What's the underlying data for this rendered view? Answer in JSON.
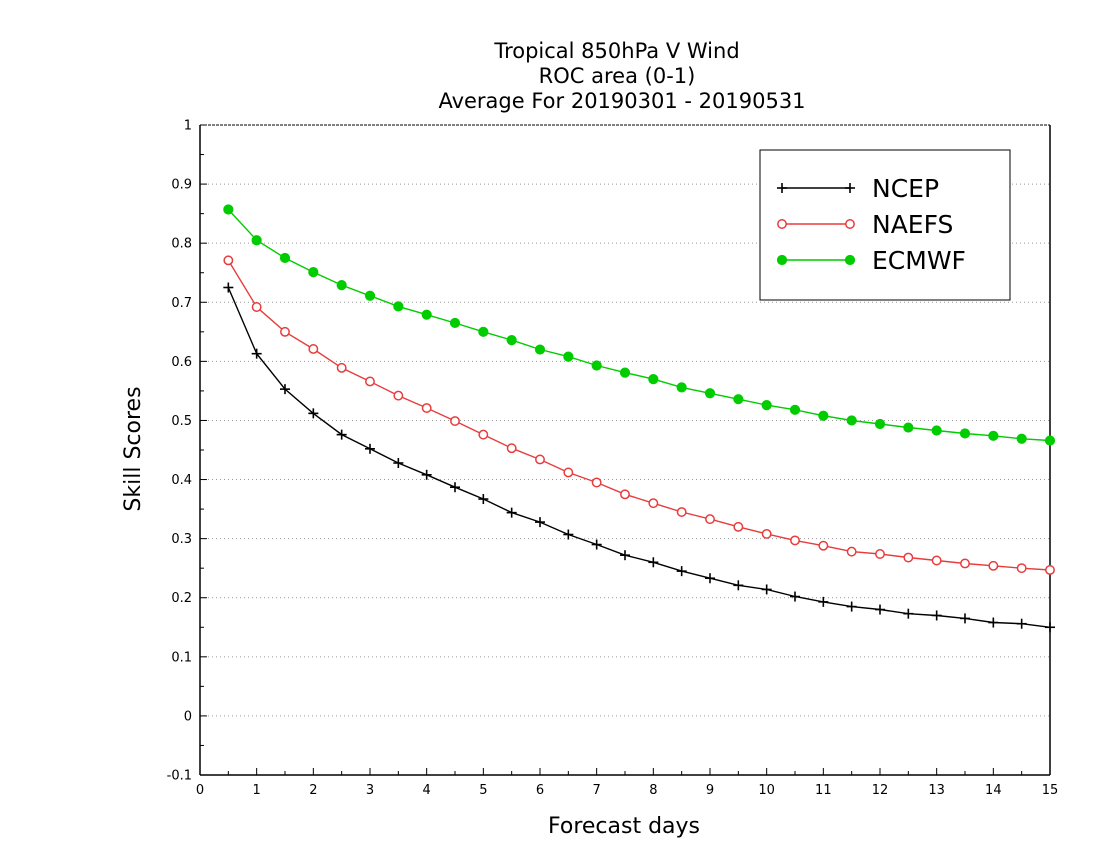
{
  "chart_data": {
    "type": "line",
    "title_lines": [
      "Tropical 850hPa V Wind",
      "ROC area (0-1)",
      "Average For 20190301 - 20190531"
    ],
    "xlabel": "Forecast days",
    "ylabel": "Skill Scores",
    "xlim": [
      0,
      15
    ],
    "ylim": [
      -0.1,
      1
    ],
    "xticks": [
      0,
      1,
      2,
      3,
      4,
      5,
      6,
      7,
      8,
      9,
      10,
      11,
      12,
      13,
      14,
      15
    ],
    "yticks": [
      -0.1,
      0,
      0.1,
      0.2,
      0.3,
      0.4,
      0.5,
      0.6,
      0.7,
      0.8,
      0.9,
      1
    ],
    "ytick_labels": [
      "-0.1",
      "0",
      "0.1",
      "0.2",
      "0.3",
      "0.4",
      "0.5",
      "0.6",
      "0.7",
      "0.8",
      "0.9",
      "1"
    ],
    "grid": "horizontal-dotted",
    "legend_position": "top-right",
    "x": [
      0.5,
      1,
      1.5,
      2,
      2.5,
      3,
      3.5,
      4,
      4.5,
      5,
      5.5,
      6,
      6.5,
      7,
      7.5,
      8,
      8.5,
      9,
      9.5,
      10,
      10.5,
      11,
      11.5,
      12,
      12.5,
      13,
      13.5,
      14,
      14.5,
      15
    ],
    "series": [
      {
        "name": "NCEP",
        "color": "#000000",
        "marker": "plus",
        "values": [
          0.725,
          0.613,
          0.553,
          0.512,
          0.476,
          0.452,
          0.428,
          0.408,
          0.387,
          0.367,
          0.344,
          0.328,
          0.307,
          0.29,
          0.272,
          0.26,
          0.245,
          0.233,
          0.221,
          0.214,
          0.202,
          0.193,
          0.185,
          0.18,
          0.173,
          0.17,
          0.165,
          0.158,
          0.156,
          0.15
        ]
      },
      {
        "name": "NAEFS",
        "color": "#e83c3c",
        "marker": "open-circle",
        "values": [
          0.771,
          0.692,
          0.65,
          0.621,
          0.589,
          0.566,
          0.542,
          0.521,
          0.499,
          0.476,
          0.453,
          0.434,
          0.412,
          0.395,
          0.375,
          0.36,
          0.345,
          0.333,
          0.32,
          0.308,
          0.297,
          0.288,
          0.278,
          0.274,
          0.268,
          0.263,
          0.258,
          0.254,
          0.25,
          0.247
        ]
      },
      {
        "name": "ECMWF",
        "color": "#00cc00",
        "marker": "filled-circle",
        "values": [
          0.857,
          0.805,
          0.775,
          0.751,
          0.729,
          0.711,
          0.693,
          0.679,
          0.665,
          0.65,
          0.636,
          0.62,
          0.608,
          0.593,
          0.581,
          0.57,
          0.556,
          0.546,
          0.536,
          0.526,
          0.518,
          0.508,
          0.5,
          0.494,
          0.488,
          0.483,
          0.478,
          0.474,
          0.469,
          0.466
        ]
      }
    ]
  }
}
